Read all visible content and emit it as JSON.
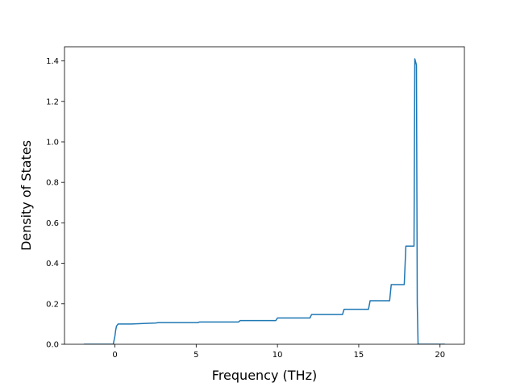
{
  "chart_data": {
    "type": "line",
    "title": "",
    "xlabel": "Frequency (THz)",
    "ylabel": "Density of States",
    "xlim": [
      -3.1,
      21.5
    ],
    "ylim": [
      0.0,
      1.47
    ],
    "xticks": [
      0,
      5,
      10,
      15,
      20
    ],
    "xtick_labels": [
      "0",
      "5",
      "10",
      "15",
      "20"
    ],
    "yticks": [
      0.0,
      0.2,
      0.4,
      0.6,
      0.8,
      1.0,
      1.2,
      1.4
    ],
    "ytick_labels": [
      "0.0",
      "0.2",
      "0.4",
      "0.6",
      "0.8",
      "1.0",
      "1.2",
      "1.4"
    ],
    "grid": false,
    "colors": {
      "line": "#1f77b4",
      "axes": "#000000",
      "background": "#ffffff"
    },
    "series": [
      {
        "x": [
          -1.9,
          -0.1,
          0.0,
          0.05,
          0.1,
          0.2,
          0.3,
          1.0,
          2.5,
          2.7,
          5.1,
          5.2,
          7.6,
          7.7,
          9.9,
          10.0,
          12.0,
          12.1,
          14.0,
          14.1,
          15.6,
          15.7,
          16.9,
          17.0,
          17.8,
          17.9,
          18.4,
          18.45,
          18.55,
          18.6,
          18.65,
          19.0,
          20.3
        ],
        "y": [
          0.0,
          0.0,
          0.04,
          0.07,
          0.09,
          0.1,
          0.1,
          0.1,
          0.105,
          0.107,
          0.107,
          0.11,
          0.11,
          0.117,
          0.117,
          0.13,
          0.13,
          0.147,
          0.147,
          0.173,
          0.173,
          0.215,
          0.215,
          0.295,
          0.295,
          0.485,
          0.485,
          1.41,
          1.38,
          0.2,
          0.0,
          0.0,
          0.0
        ]
      }
    ]
  }
}
